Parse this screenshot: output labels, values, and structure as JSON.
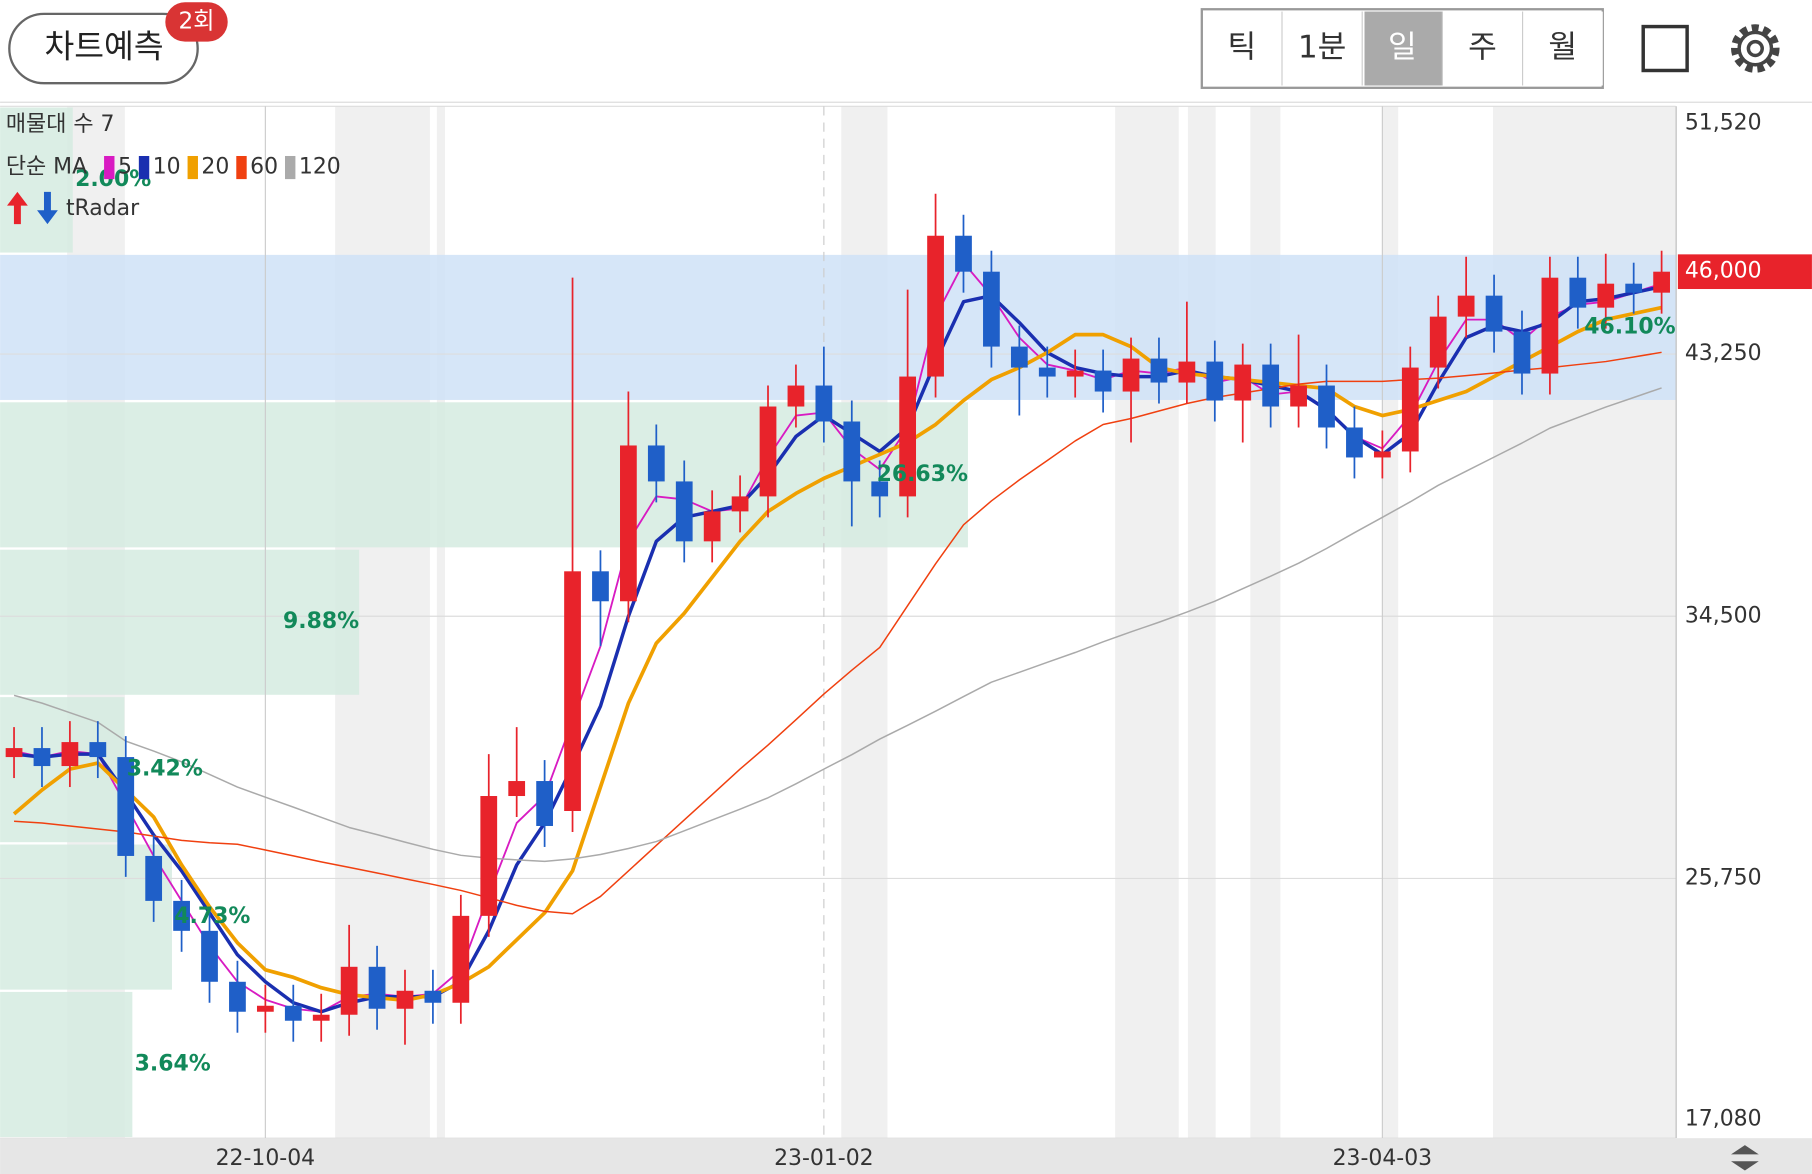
{
  "header": {
    "predict_button": "차트예측",
    "badge": "2회",
    "tabs": [
      "틱",
      "1분",
      "일",
      "주",
      "월"
    ],
    "selected_tab": 2
  },
  "chart_data": {
    "type": "candlestick",
    "categories": [
      null,
      null,
      null,
      null,
      null,
      null,
      null,
      null,
      null,
      "22-10-04",
      null,
      null,
      null,
      null,
      null,
      null,
      null,
      null,
      null,
      null,
      null,
      null,
      null,
      null,
      null,
      null,
      null,
      null,
      null,
      "23-01-02",
      null,
      null,
      null,
      null,
      null,
      null,
      null,
      null,
      null,
      null,
      null,
      null,
      null,
      null,
      null,
      null,
      null,
      null,
      null,
      "23-04-03",
      null,
      null,
      null,
      null,
      null,
      null,
      null,
      null,
      null,
      null
    ],
    "open": [
      29800,
      30100,
      29500,
      30300,
      29800,
      26500,
      25000,
      24000,
      22300,
      21300,
      21500,
      21000,
      21200,
      22800,
      21400,
      22000,
      21600,
      24500,
      28500,
      29000,
      28000,
      36000,
      35000,
      40200,
      39000,
      37000,
      38000,
      38500,
      41500,
      42200,
      41000,
      39000,
      38500,
      42500,
      47200,
      46000,
      43500,
      42800,
      42500,
      42700,
      42000,
      43100,
      42300,
      43000,
      41700,
      42900,
      41500,
      42200,
      40800,
      39800,
      40000,
      42800,
      44500,
      45200,
      44000,
      42600,
      45800,
      44800,
      45600,
      45300
    ],
    "high": [
      30800,
      30800,
      31000,
      31000,
      30500,
      27200,
      25700,
      24700,
      23000,
      22200,
      22200,
      21900,
      24200,
      23500,
      22700,
      22700,
      25200,
      29900,
      30800,
      29700,
      45800,
      36700,
      42000,
      40900,
      39700,
      38700,
      39200,
      42200,
      42900,
      43500,
      41700,
      39700,
      45400,
      48600,
      47900,
      46700,
      44200,
      43500,
      43400,
      43400,
      43800,
      43800,
      45000,
      43700,
      43600,
      43600,
      43900,
      42900,
      41500,
      40700,
      43500,
      45200,
      46500,
      45900,
      44700,
      46500,
      46500,
      46600,
      46300,
      46700
    ],
    "low": [
      29100,
      28800,
      28800,
      29100,
      25800,
      24300,
      23300,
      21600,
      20600,
      20600,
      20300,
      20300,
      20500,
      20700,
      20200,
      20900,
      20900,
      23800,
      27800,
      26800,
      27300,
      33500,
      34300,
      38300,
      36300,
      36300,
      37300,
      37800,
      40800,
      40300,
      37500,
      37800,
      37800,
      41800,
      45300,
      42800,
      41200,
      41800,
      41800,
      41300,
      40300,
      41600,
      41600,
      41000,
      40300,
      40800,
      40800,
      40100,
      39100,
      39100,
      39300,
      42100,
      43800,
      43300,
      41900,
      41900,
      44100,
      44100,
      44600,
      44600
    ],
    "close": [
      30100,
      29500,
      30300,
      29800,
      26500,
      25000,
      24000,
      22300,
      21300,
      21500,
      21000,
      21200,
      22800,
      21400,
      22000,
      21600,
      24500,
      28500,
      29000,
      27500,
      36000,
      35000,
      40200,
      39000,
      37000,
      38000,
      38500,
      41500,
      42200,
      41000,
      39000,
      38500,
      42500,
      47200,
      46000,
      43500,
      42800,
      42500,
      42700,
      42000,
      43100,
      42300,
      43000,
      41700,
      42900,
      41500,
      42200,
      40800,
      39800,
      40000,
      42800,
      44500,
      45200,
      44000,
      42600,
      45800,
      44800,
      45600,
      45300,
      46000
    ],
    "up_color": "#e8232b",
    "down_color": "#1f5fc8",
    "ylim": [
      17080,
      51520
    ],
    "yticks": [
      {
        "value": 17080,
        "label": "17,080"
      },
      {
        "value": 25750,
        "label": "25,750"
      },
      {
        "value": 34500,
        "label": "34,500"
      },
      {
        "value": 43250,
        "label": "43,250"
      },
      {
        "value": 51520,
        "label": "51,520"
      }
    ],
    "grid": true,
    "ma_title": "단순 MA",
    "series": [
      {
        "name": "5",
        "color": "#d81bc2",
        "line_width": 1.6,
        "values": [
          30000,
          29800,
          30000,
          29900,
          28200,
          26500,
          25000,
          23500,
          22300,
          21700,
          21400,
          21300,
          21800,
          21900,
          21800,
          21900,
          22700,
          25200,
          27600,
          28500,
          31000,
          33500,
          37000,
          38500,
          38400,
          38000,
          38100,
          39800,
          41200,
          41300,
          40100,
          39400,
          40800,
          44500,
          46300,
          45200,
          43800,
          42900,
          42700,
          42400,
          42700,
          42600,
          42800,
          42300,
          42500,
          41900,
          42000,
          41400,
          40500,
          40100,
          41200,
          43000,
          44400,
          44400,
          43700,
          44500,
          44900,
          45000,
          45300,
          45600
        ]
      },
      {
        "name": "10",
        "color": "#1a2fb0",
        "line_width": 3,
        "values": [
          29900,
          29800,
          29900,
          29900,
          28600,
          27200,
          26000,
          24600,
          23200,
          22300,
          21600,
          21300,
          21600,
          21800,
          21800,
          21800,
          22300,
          24000,
          26200,
          27600,
          29500,
          31500,
          34500,
          37000,
          37800,
          38000,
          38200,
          39200,
          40500,
          41200,
          40600,
          40000,
          40800,
          43000,
          45000,
          45200,
          44300,
          43300,
          42800,
          42600,
          42500,
          42500,
          42700,
          42500,
          42400,
          42200,
          42000,
          41400,
          40500,
          39900,
          40600,
          42300,
          43800,
          44200,
          44000,
          44300,
          45000,
          45100,
          45300,
          45500
        ]
      },
      {
        "name": "20",
        "color": "#f0a000",
        "line_width": 3.2,
        "values": [
          27900,
          28700,
          29400,
          29600,
          28700,
          27800,
          26200,
          24800,
          23600,
          22700,
          22450,
          22100,
          21870,
          21770,
          21680,
          21870,
          22250,
          22800,
          23700,
          24600,
          26000,
          28800,
          31600,
          33600,
          34600,
          35800,
          37000,
          38000,
          38600,
          39100,
          39500,
          39900,
          40300,
          40900,
          41700,
          42400,
          42800,
          43300,
          43900,
          43900,
          43500,
          42800,
          42600,
          42500,
          42400,
          42300,
          42200,
          42100,
          41500,
          41200,
          41400,
          41700,
          42000,
          42500,
          43000,
          43500,
          44000,
          44400,
          44600,
          44800
        ]
      },
      {
        "name": "60",
        "color": "#f04010",
        "line_width": 1.3,
        "values": [
          27660,
          27600,
          27500,
          27400,
          27300,
          27160,
          27020,
          26940,
          26890,
          26700,
          26500,
          26300,
          26120,
          25930,
          25740,
          25550,
          25350,
          25100,
          24850,
          24650,
          24570,
          25150,
          26000,
          26850,
          27700,
          28550,
          29400,
          30200,
          31050,
          31900,
          32700,
          33460,
          34850,
          36250,
          37550,
          38350,
          39050,
          39700,
          40350,
          40900,
          41100,
          41350,
          41600,
          41800,
          41950,
          42100,
          42250,
          42340,
          42340,
          42340,
          42400,
          42450,
          42530,
          42620,
          42720,
          42800,
          42900,
          43000,
          43150,
          43310
        ]
      },
      {
        "name": "120",
        "color": "#aaaaaa",
        "line_width": 1.3,
        "values": [
          31860,
          31600,
          31280,
          30960,
          30330,
          30000,
          29640,
          29220,
          28800,
          28460,
          28130,
          27790,
          27450,
          27210,
          26960,
          26720,
          26520,
          26430,
          26370,
          26320,
          26400,
          26550,
          26750,
          26980,
          27340,
          27700,
          28060,
          28440,
          28910,
          29400,
          29880,
          30400,
          30860,
          31330,
          31820,
          32300,
          32630,
          32960,
          33290,
          33650,
          33980,
          34300,
          34640,
          35000,
          35420,
          35840,
          36270,
          36760,
          37290,
          37800,
          38320,
          38870,
          39340,
          39810,
          40280,
          40780,
          41130,
          41480,
          41800,
          42120
        ]
      }
    ],
    "current_price": {
      "value": 46000,
      "label": "46,000"
    },
    "profile": {
      "title": "매물대 수 7",
      "values": [
        2.0,
        46.1,
        26.63,
        9.88,
        3.42,
        4.73,
        3.64
      ],
      "value_labels": [
        "2.00%",
        "46.10%",
        "26.63%",
        "9.88%",
        "3.42%",
        "4.73%",
        "3.64%"
      ],
      "max_color": "#cfe2f7",
      "color": "#d5ebe1",
      "label_color": "#12895a"
    },
    "radar_label": "tRadar"
  }
}
